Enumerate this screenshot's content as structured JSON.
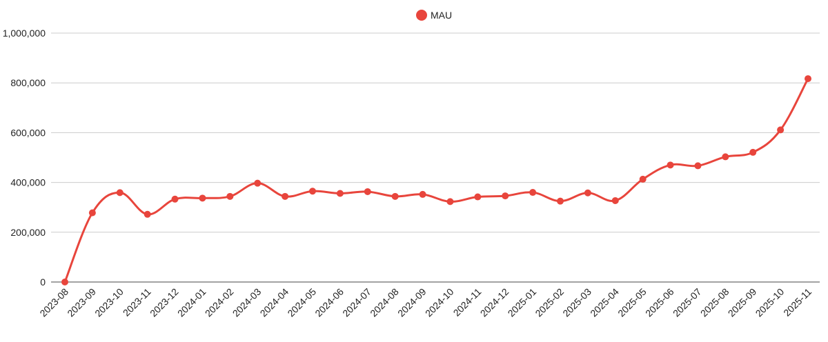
{
  "chart_data": {
    "type": "line",
    "x": [
      "2023-08",
      "2023-09",
      "2023-10",
      "2023-11",
      "2023-12",
      "2024-01",
      "2024-02",
      "2024-03",
      "2024-04",
      "2024-05",
      "2024-06",
      "2024-07",
      "2024-08",
      "2024-09",
      "2024-10",
      "2024-11",
      "2024-12",
      "2025-01",
      "2025-02",
      "2025-03",
      "2025-04",
      "2025-05",
      "2025-06",
      "2025-07",
      "2025-08",
      "2025-09",
      "2025-10",
      "2025-11"
    ],
    "series": [
      {
        "name": "MAU",
        "color": "#e8453c",
        "values": [
          0,
          278000,
          359000,
          272000,
          333000,
          337000,
          344000,
          397000,
          344000,
          365000,
          356000,
          363000,
          344000,
          352000,
          323000,
          342000,
          346000,
          360000,
          325000,
          358000,
          327000,
          413000,
          470000,
          467000,
          503000,
          521000,
          611000,
          817000
        ]
      }
    ],
    "yticks": [
      "0",
      "200,000",
      "400,000",
      "600,000",
      "800,000",
      "1,000,000"
    ],
    "ylim": [
      0,
      1000000
    ],
    "grid": true,
    "legend_position": "top-center"
  }
}
